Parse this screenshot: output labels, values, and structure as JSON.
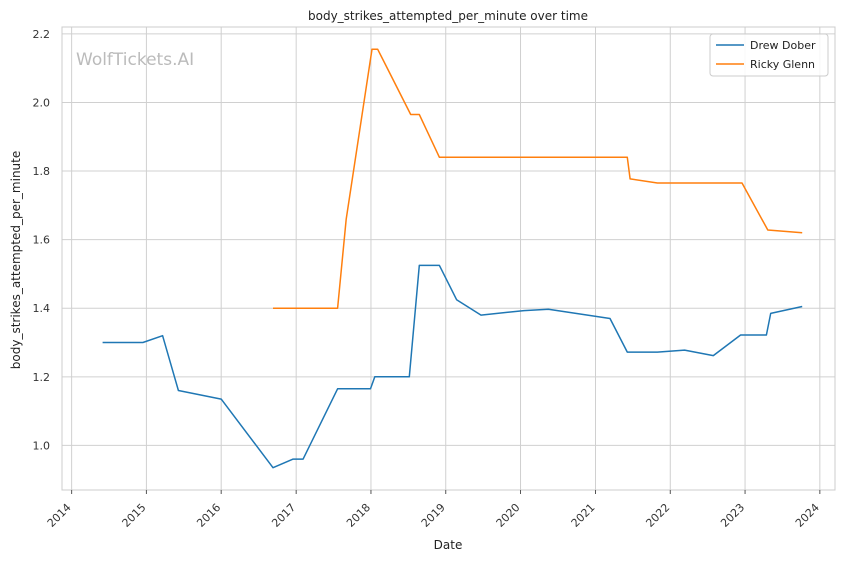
{
  "chart_data": {
    "type": "line",
    "title": "body_strikes_attempted_per_minute over time",
    "xlabel": "Date",
    "ylabel": "body_strikes_attempted_per_minute",
    "watermark": "WolfTickets.AI",
    "xlim": [
      "2013-11-15",
      "2024-03-15"
    ],
    "ylim": [
      0.87,
      2.22
    ],
    "x_ticks": [
      "2014",
      "2015",
      "2016",
      "2017",
      "2018",
      "2019",
      "2020",
      "2021",
      "2022",
      "2023",
      "2024"
    ],
    "y_ticks": [
      1.0,
      1.2,
      1.4,
      1.6,
      1.8,
      2.0,
      2.2
    ],
    "y_tick_labels": [
      "1.0",
      "1.2",
      "1.4",
      "1.6",
      "1.8",
      "2.0",
      "2.2"
    ],
    "grid": true,
    "legend_position": "top-right",
    "series": [
      {
        "name": "Drew Dober",
        "color": "#1f77b4",
        "points": [
          [
            "2014-06-01",
            1.3
          ],
          [
            "2014-12-15",
            1.3
          ],
          [
            "2015-03-21",
            1.32
          ],
          [
            "2015-06-06",
            1.16
          ],
          [
            "2016-01-01",
            1.135
          ],
          [
            "2016-09-10",
            0.935
          ],
          [
            "2016-12-17",
            0.96
          ],
          [
            "2017-02-04",
            0.96
          ],
          [
            "2017-07-22",
            1.165
          ],
          [
            "2017-12-30",
            1.165
          ],
          [
            "2018-01-20",
            1.2
          ],
          [
            "2018-07-07",
            1.2
          ],
          [
            "2018-08-25",
            1.525
          ],
          [
            "2018-12-01",
            1.525
          ],
          [
            "2019-02-23",
            1.425
          ],
          [
            "2019-06-22",
            1.38
          ],
          [
            "2020-01-18",
            1.393
          ],
          [
            "2020-05-16",
            1.397
          ],
          [
            "2021-03-13",
            1.37
          ],
          [
            "2021-06-05",
            1.272
          ],
          [
            "2021-10-30",
            1.272
          ],
          [
            "2022-03-12",
            1.278
          ],
          [
            "2022-07-30",
            1.262
          ],
          [
            "2022-12-10",
            1.322
          ],
          [
            "2023-04-15",
            1.322
          ],
          [
            "2023-05-06",
            1.385
          ],
          [
            "2023-10-07",
            1.405
          ]
        ]
      },
      {
        "name": "Ricky Glenn",
        "color": "#ff7f0e",
        "points": [
          [
            "2016-09-10",
            1.4
          ],
          [
            "2017-07-22",
            1.4
          ],
          [
            "2017-09-02",
            1.66
          ],
          [
            "2018-01-06",
            2.155
          ],
          [
            "2018-02-03",
            2.155
          ],
          [
            "2018-07-14",
            1.965
          ],
          [
            "2018-08-25",
            1.965
          ],
          [
            "2018-12-01",
            1.84
          ],
          [
            "2021-06-05",
            1.84
          ],
          [
            "2021-06-19",
            1.777
          ],
          [
            "2021-10-30",
            1.765
          ],
          [
            "2022-12-17",
            1.765
          ],
          [
            "2023-04-22",
            1.628
          ],
          [
            "2023-10-07",
            1.62
          ]
        ]
      }
    ]
  }
}
